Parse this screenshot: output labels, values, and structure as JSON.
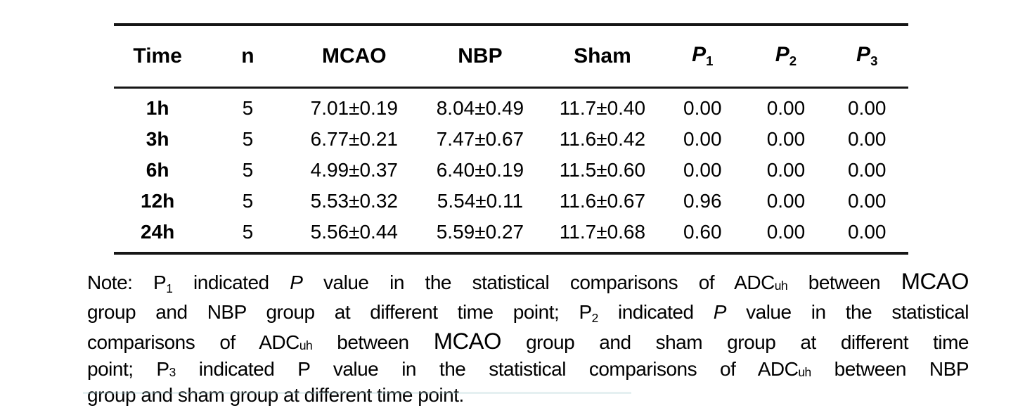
{
  "colors": {
    "text": "#000000",
    "rule": "#161616",
    "background": "#ffffff",
    "clipped_line_tint": "#a8cdd2"
  },
  "table": {
    "columns": [
      {
        "label": "Time",
        "sub": "",
        "italic": false
      },
      {
        "label": "n",
        "sub": "",
        "italic": false
      },
      {
        "label": "MCAO",
        "sub": "",
        "italic": false
      },
      {
        "label": "NBP",
        "sub": "",
        "italic": false
      },
      {
        "label": "Sham",
        "sub": "",
        "italic": false
      },
      {
        "label": "P",
        "sub": "1",
        "italic": true
      },
      {
        "label": "P",
        "sub": "2",
        "italic": true
      },
      {
        "label": "P",
        "sub": "3",
        "italic": true
      }
    ],
    "rows": [
      [
        "1h",
        "5",
        "7.01±0.19",
        "8.04±0.49",
        "11.7±0.40",
        "0.00",
        "0.00",
        "0.00"
      ],
      [
        "3h",
        "5",
        "6.77±0.21",
        "7.47±0.67",
        "11.6±0.42",
        "0.00",
        "0.00",
        "0.00"
      ],
      [
        "6h",
        "5",
        "4.99±0.37",
        "6.40±0.19",
        "11.5±0.60",
        "0.00",
        "0.00",
        "0.00"
      ],
      [
        "12h",
        "5",
        "5.53±0.32",
        "5.54±0.11",
        "11.6±0.67",
        "0.96",
        "0.00",
        "0.00"
      ],
      [
        "24h",
        "5",
        "5.56±0.44",
        "5.59±0.27",
        "11.7±0.68",
        "0.60",
        "0.00",
        "0.00"
      ]
    ]
  },
  "note": {
    "lines": [
      {
        "justify": true,
        "segments": [
          {
            "t": "Note: P",
            "s": "n"
          },
          {
            "t": "1",
            "s": "sub"
          },
          {
            "t": " indicated ",
            "s": "n"
          },
          {
            "t": "P",
            "s": "i"
          },
          {
            "t": " value in the statistical comparisons of ADC",
            "s": "n"
          },
          {
            "t": "uh",
            "s": "sm"
          },
          {
            "t": " between ",
            "s": "n"
          },
          {
            "t": "MCAO",
            "s": "lg"
          }
        ]
      },
      {
        "justify": true,
        "segments": [
          {
            "t": "group and NBP group at different time point; P",
            "s": "n"
          },
          {
            "t": "2",
            "s": "sub"
          },
          {
            "t": " indicated ",
            "s": "n"
          },
          {
            "t": "P",
            "s": "i"
          },
          {
            "t": " value in the statistical",
            "s": "n"
          }
        ]
      },
      {
        "justify": true,
        "segments": [
          {
            "t": "comparisons of ADC",
            "s": "n"
          },
          {
            "t": "uh",
            "s": "sm"
          },
          {
            "t": " between ",
            "s": "n"
          },
          {
            "t": "MCAO",
            "s": "lg"
          },
          {
            "t": " group and sham group at different time",
            "s": "n"
          }
        ]
      },
      {
        "justify": true,
        "segments": [
          {
            "t": "point; P",
            "s": "n"
          },
          {
            "t": "3",
            "s": "sm"
          },
          {
            "t": " indicated P value in the statistical comparisons of ADC",
            "s": "n"
          },
          {
            "t": "uh",
            "s": "sm"
          },
          {
            "t": " between NBP",
            "s": "n"
          }
        ]
      },
      {
        "justify": false,
        "segments": [
          {
            "t": "group and sham group at different time point.",
            "s": "n"
          }
        ]
      }
    ]
  }
}
